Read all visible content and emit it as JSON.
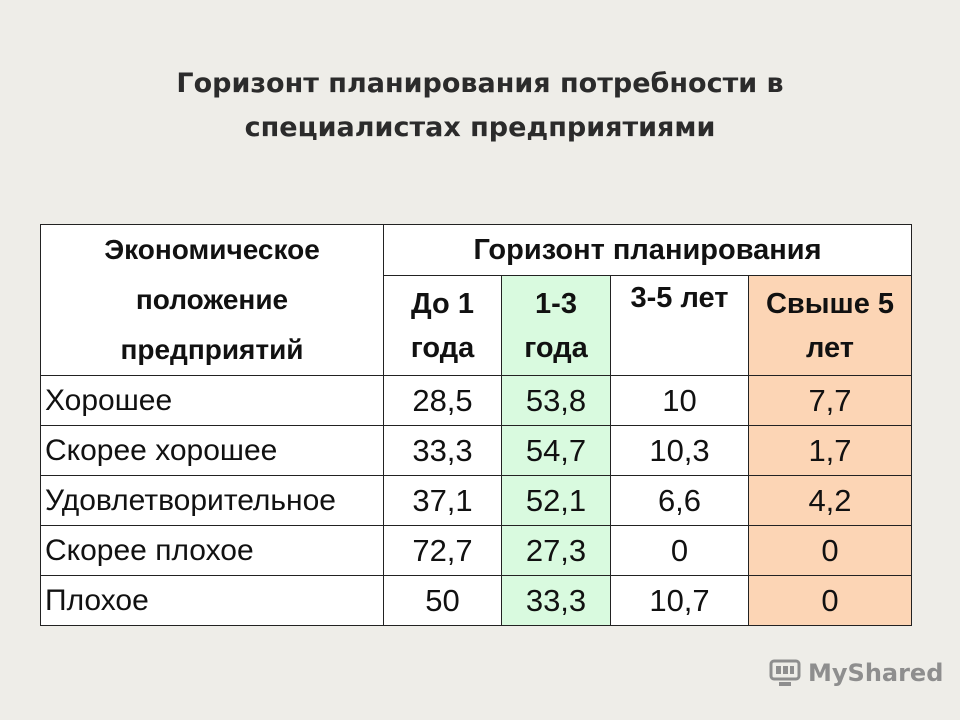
{
  "title": {
    "line1": "Горизонт планирования потребности в",
    "line2": "специалистах предприятиями"
  },
  "table": {
    "corner_header": "Экономическое положение предприятий",
    "group_header": "Горизонт планирования",
    "columns": [
      "До 1 года",
      "1-3 года",
      "3-5 лет",
      "Свыше 5 лет"
    ],
    "rows": [
      {
        "label": "Хорошее",
        "values": [
          "28,5",
          "53,8",
          "10",
          "7,7"
        ]
      },
      {
        "label": "Скорее хорошее",
        "values": [
          "33,3",
          "54,7",
          "10,3",
          "1,7"
        ]
      },
      {
        "label": "Удовлетворительное",
        "values": [
          "37,1",
          "52,1",
          "6,6",
          "4,2"
        ]
      },
      {
        "label": "Скорее плохое",
        "values": [
          "72,7",
          "27,3",
          "0",
          "0"
        ]
      },
      {
        "label": "Плохое",
        "values": [
          "50",
          "33,3",
          "10,7",
          "0"
        ]
      }
    ],
    "highlight_colors": {
      "col_2": "#d9fadf",
      "col_4": "#fcd5b5"
    }
  },
  "watermark": {
    "text": "MyShared",
    "icon": "myshared-logo-icon"
  }
}
